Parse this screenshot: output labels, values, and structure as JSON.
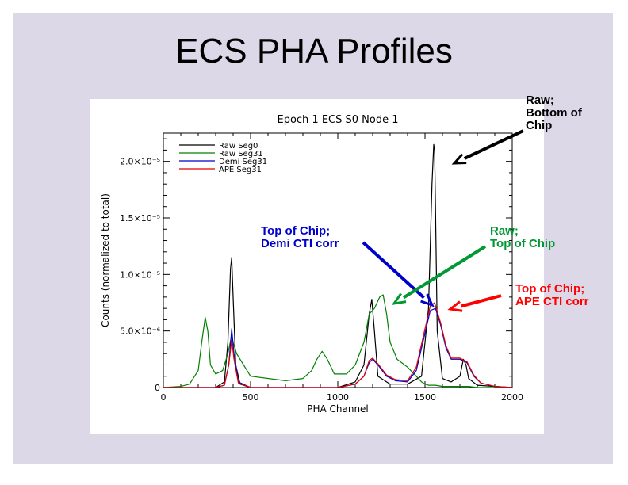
{
  "slide": {
    "title": "ECS PHA Profiles"
  },
  "annotations": [
    {
      "id": "raw-bottom",
      "text": "Raw;\nBottom of\nChip",
      "color": "#000000"
    },
    {
      "id": "top-demi",
      "text": "Top of Chip;\nDemi CTI corr",
      "color": "#0000cc"
    },
    {
      "id": "raw-top",
      "text": "Raw;\nTop of Chip",
      "color": "#009933"
    },
    {
      "id": "top-ape",
      "text": "Top of Chip;\nAPE CTI corr",
      "color": "#ff0000"
    }
  ],
  "chart_data": {
    "type": "line",
    "title": "Epoch 1 ECS S0 Node 1",
    "xlabel": "PHA Channel",
    "ylabel": "Counts (normalized to total)",
    "xlim": [
      0,
      2000
    ],
    "ylim": [
      0,
      2.25e-05
    ],
    "xticks": [
      0,
      500,
      1000,
      1500,
      2000
    ],
    "xtick_labels": [
      "0",
      "500",
      "1000",
      "1500",
      "2000"
    ],
    "yticks": [
      0,
      5e-06,
      1e-05,
      1.5e-05,
      2e-05
    ],
    "ytick_labels": [
      "0",
      "5.0×10⁻⁶",
      "1.0×10⁻⁵",
      "1.5×10⁻⁵",
      "2.0×10⁻⁵"
    ],
    "legend_position": "top-left",
    "series": [
      {
        "name": "Raw Seg0",
        "color": "#000000",
        "x": [
          0,
          100,
          200,
          300,
          350,
          370,
          385,
          392,
          400,
          415,
          440,
          500,
          800,
          1000,
          1100,
          1150,
          1180,
          1195,
          1210,
          1230,
          1300,
          1400,
          1480,
          1520,
          1540,
          1550,
          1555,
          1560,
          1570,
          1600,
          1650,
          1700,
          1720,
          1735,
          1750,
          1800,
          2000
        ],
        "y": [
          0,
          0,
          0,
          0,
          5e-07,
          4e-06,
          1.05e-05,
          1.15e-05,
          8e-06,
          2e-06,
          3e-07,
          0,
          0,
          0,
          5e-07,
          2e-06,
          6.5e-06,
          7.8e-06,
          5e-06,
          1e-06,
          3e-07,
          3e-07,
          1e-06,
          7e-06,
          1.8e-05,
          2.15e-05,
          2.1e-05,
          1.6e-05,
          5e-06,
          8e-07,
          5e-07,
          1e-06,
          2.5e-06,
          2e-06,
          8e-07,
          2e-07,
          0
        ]
      },
      {
        "name": "Raw Seg31",
        "color": "#008000",
        "x": [
          0,
          100,
          150,
          200,
          220,
          240,
          255,
          270,
          300,
          340,
          370,
          390,
          420,
          500,
          700,
          800,
          850,
          880,
          910,
          940,
          980,
          1050,
          1100,
          1150,
          1180,
          1210,
          1240,
          1260,
          1280,
          1300,
          1340,
          1400,
          1450,
          1480,
          1500,
          1520,
          1560,
          1600,
          1700,
          1750,
          1800,
          1900,
          2000
        ],
        "y": [
          0,
          1e-07,
          3e-07,
          1.5e-06,
          4e-06,
          6.2e-06,
          5e-06,
          2e-06,
          1.2e-06,
          1.5e-06,
          3e-06,
          4.5e-06,
          3e-06,
          1e-06,
          6e-07,
          8e-07,
          1.5e-06,
          2.5e-06,
          3.2e-06,
          2.5e-06,
          1.2e-06,
          1.2e-06,
          2e-06,
          4e-06,
          6.5e-06,
          7e-06,
          8e-06,
          8.2e-06,
          6.5e-06,
          4e-06,
          2.5e-06,
          1.8e-06,
          1e-06,
          5e-07,
          3e-07,
          2e-07,
          2e-07,
          1e-07,
          1e-07,
          1e-07,
          0,
          0,
          0
        ]
      },
      {
        "name": "Demi Seg31",
        "color": "#0000cc",
        "x": [
          0,
          300,
          350,
          375,
          392,
          405,
          430,
          500,
          1000,
          1100,
          1150,
          1180,
          1200,
          1230,
          1280,
          1330,
          1400,
          1450,
          1500,
          1530,
          1560,
          1590,
          1620,
          1650,
          1700,
          1740,
          1780,
          1820,
          1900,
          2000
        ],
        "y": [
          0,
          0,
          2e-07,
          2e-06,
          5.2e-06,
          3e-06,
          5e-07,
          0,
          0,
          3e-07,
          1e-06,
          2.2e-06,
          2.5e-06,
          2e-06,
          1e-06,
          6e-07,
          5e-07,
          1.5e-06,
          4.8e-06,
          6.8e-06,
          7e-06,
          5.5e-06,
          3.5e-06,
          2.5e-06,
          2.5e-06,
          2.2e-06,
          1e-06,
          4e-07,
          1e-07,
          0
        ]
      },
      {
        "name": "APE Seg31",
        "color": "#e00000",
        "x": [
          0,
          300,
          350,
          375,
          392,
          405,
          430,
          500,
          1000,
          1100,
          1150,
          1180,
          1200,
          1230,
          1280,
          1330,
          1400,
          1450,
          1500,
          1530,
          1555,
          1590,
          1620,
          1650,
          1700,
          1740,
          1780,
          1820,
          1900,
          2000
        ],
        "y": [
          0,
          0,
          2e-07,
          2e-06,
          4.2e-06,
          2.5e-06,
          4e-07,
          0,
          0,
          3e-07,
          1e-06,
          2.4e-06,
          2.6e-06,
          2.1e-06,
          1.1e-06,
          7e-07,
          6e-07,
          1.8e-06,
          5.2e-06,
          7.2e-06,
          7.5e-06,
          5.7e-06,
          3.7e-06,
          2.6e-06,
          2.6e-06,
          2.3e-06,
          1.1e-06,
          4e-07,
          1e-07,
          0
        ]
      }
    ]
  }
}
